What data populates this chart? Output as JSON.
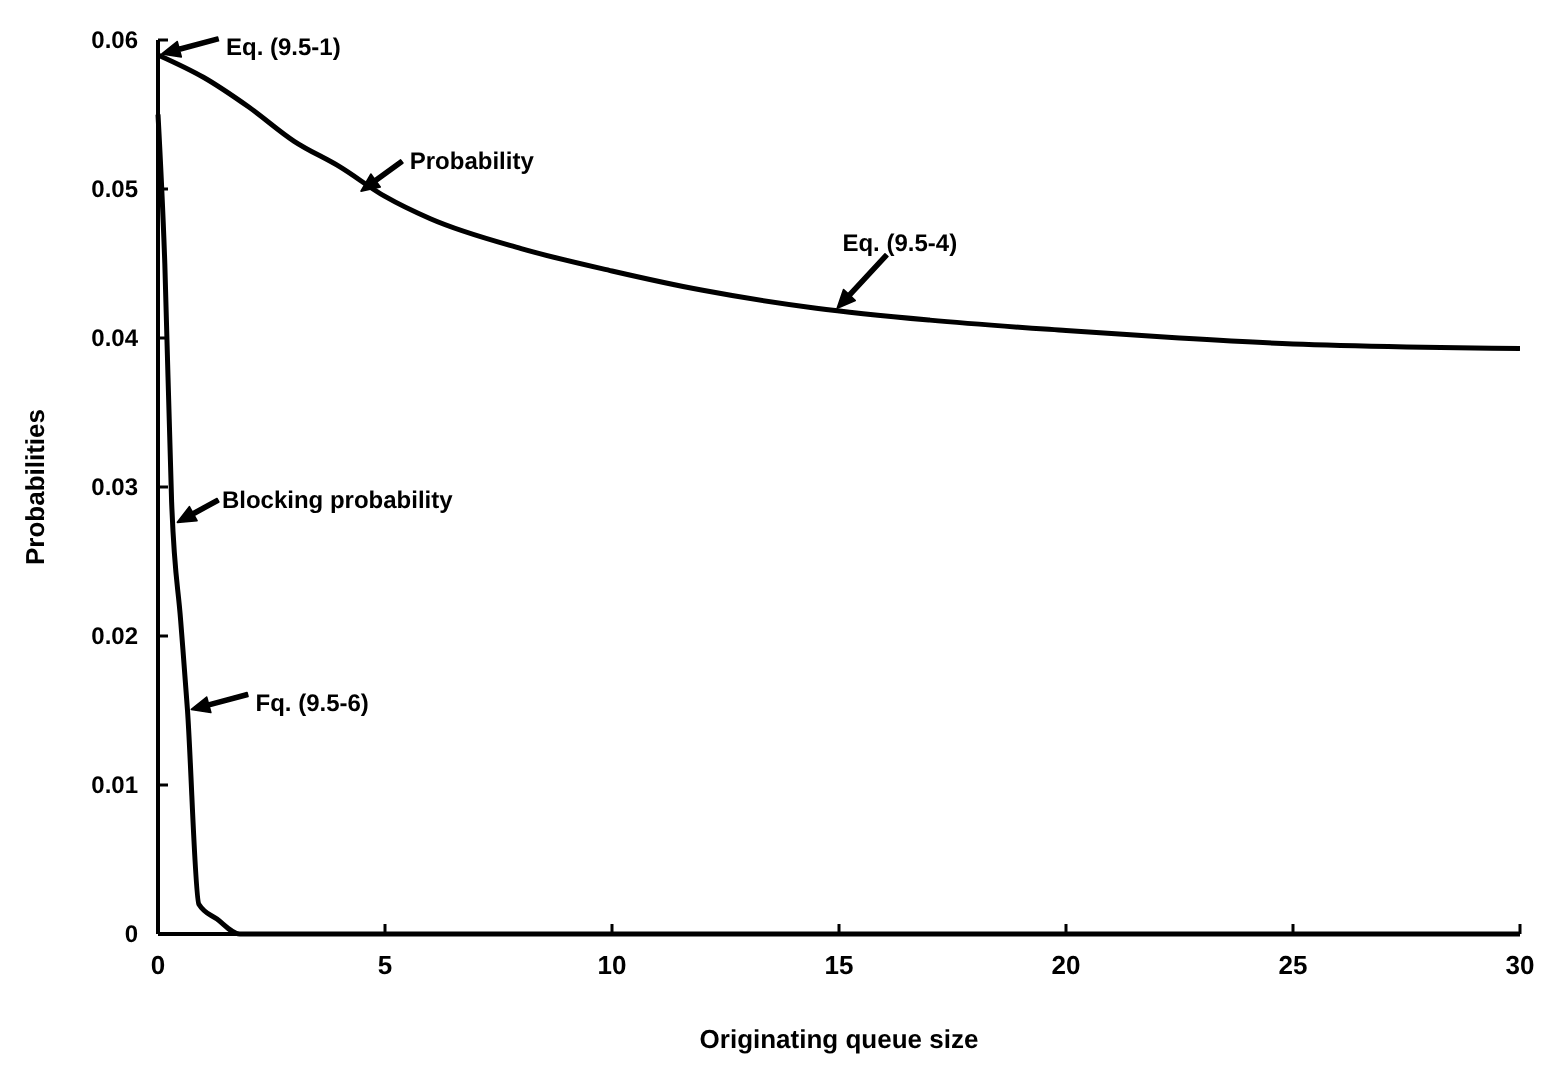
{
  "chart_data": {
    "type": "line",
    "xlabel": "Originating queue size",
    "ylabel": "Probabilities",
    "xlim": [
      0,
      30
    ],
    "xticks": [
      0,
      5,
      10,
      15,
      20,
      25,
      30
    ],
    "ylim": [
      0,
      0.06
    ],
    "yticks": [
      0,
      0.01,
      0.02,
      0.03,
      0.04,
      0.05,
      0.06
    ],
    "grid": false,
    "marker": "none",
    "line_style": "solid",
    "series": [
      {
        "color": "#000000",
        "x": [
          0,
          1,
          2,
          3,
          4,
          5,
          6,
          8,
          10,
          12,
          14.5,
          17,
          20,
          22.5,
          25,
          27.5,
          30
        ],
        "values": [
          0.059,
          0.0575,
          0.0555,
          0.0532,
          0.0515,
          0.0495,
          0.048,
          0.046,
          0.0445,
          0.0432,
          0.042,
          0.0412,
          0.0405,
          0.04,
          0.0396,
          0.0394,
          0.0393
        ]
      },
      {
        "color": "#000000",
        "x": [
          0,
          0.15,
          0.3,
          0.5,
          0.65,
          0.9,
          1.3,
          1.8,
          5,
          10,
          15,
          20,
          25,
          30
        ],
        "values": [
          0.055,
          0.045,
          0.029,
          0.021,
          0.015,
          0.002,
          0.001,
          0,
          0,
          0,
          0,
          0,
          0,
          0
        ]
      }
    ],
    "annotations": [
      {
        "text": "Eq. (9.5-1)",
        "x": 0,
        "y": 0.059
      },
      {
        "text": "Probability",
        "x": 4.4,
        "y": 0.0497
      },
      {
        "text": "Eq. (9.5-4)",
        "x": 14.9,
        "y": 0.0418
      },
      {
        "text": "Blocking probability",
        "x": 0.35,
        "y": 0.0275
      },
      {
        "text": "Fq. (9.5-6)",
        "x": 0.65,
        "y": 0.015
      }
    ]
  }
}
